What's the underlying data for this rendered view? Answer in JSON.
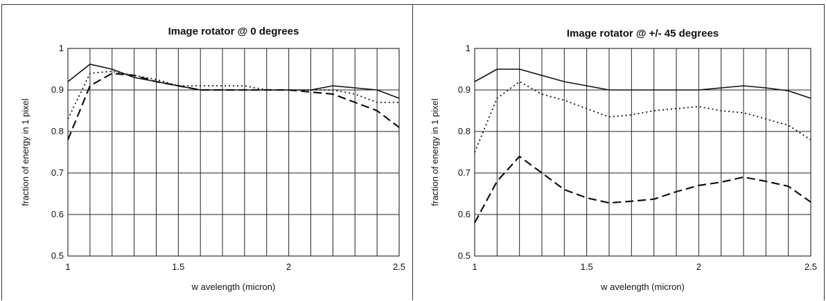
{
  "chart_data": [
    {
      "type": "line",
      "title": "Image rotator @ 0 degrees",
      "xlabel": "w avelength (micron)",
      "ylabel": "fraction of energy in 1 pixel",
      "xlim": [
        1,
        2.5
      ],
      "ylim": [
        0.5,
        1
      ],
      "xticks": [
        "1",
        "1.5",
        "2",
        "2.5"
      ],
      "yticks": [
        "0.5",
        "0.6",
        "0.7",
        "0.8",
        "0.9",
        "1"
      ],
      "grid": true,
      "legend": "none",
      "x": [
        1.0,
        1.1,
        1.2,
        1.3,
        1.4,
        1.5,
        1.6,
        1.7,
        1.8,
        1.9,
        2.0,
        2.1,
        2.2,
        2.3,
        2.4,
        2.5
      ],
      "series": [
        {
          "style": "solid",
          "values": [
            0.92,
            0.962,
            0.95,
            0.93,
            0.92,
            0.91,
            0.9,
            0.9,
            0.9,
            0.9,
            0.9,
            0.9,
            0.91,
            0.905,
            0.9,
            0.88
          ]
        },
        {
          "style": "dotted",
          "values": [
            0.83,
            0.94,
            0.945,
            0.935,
            0.925,
            0.91,
            0.91,
            0.91,
            0.91,
            0.9,
            0.9,
            0.9,
            0.9,
            0.89,
            0.87,
            0.87
          ]
        },
        {
          "style": "dashed",
          "values": [
            0.78,
            0.91,
            0.94,
            0.935,
            0.92,
            0.91,
            0.9,
            0.9,
            0.9,
            0.9,
            0.9,
            0.895,
            0.89,
            0.87,
            0.85,
            0.81
          ]
        }
      ]
    },
    {
      "type": "line",
      "title": "Image rotator @ +/- 45 degrees",
      "xlabel": "w avelength (micron)",
      "ylabel": "fraction of energy in 1 pixel",
      "xlim": [
        1,
        2.5
      ],
      "ylim": [
        0.5,
        1
      ],
      "xticks": [
        "1",
        "1.5",
        "2",
        "2.5"
      ],
      "yticks": [
        "0.5",
        "0.6",
        "0.7",
        "0.8",
        "0.9",
        "1"
      ],
      "grid": true,
      "legend": "none",
      "x": [
        1.0,
        1.1,
        1.2,
        1.3,
        1.4,
        1.5,
        1.6,
        1.7,
        1.8,
        1.9,
        2.0,
        2.1,
        2.2,
        2.3,
        2.4,
        2.5
      ],
      "series": [
        {
          "style": "solid",
          "values": [
            0.92,
            0.95,
            0.95,
            0.935,
            0.92,
            0.91,
            0.9,
            0.9,
            0.9,
            0.9,
            0.9,
            0.905,
            0.91,
            0.905,
            0.898,
            0.88
          ]
        },
        {
          "style": "dotted",
          "values": [
            0.75,
            0.88,
            0.92,
            0.89,
            0.875,
            0.855,
            0.835,
            0.84,
            0.85,
            0.855,
            0.86,
            0.85,
            0.845,
            0.83,
            0.815,
            0.78
          ]
        },
        {
          "style": "dashed",
          "values": [
            0.58,
            0.68,
            0.74,
            0.7,
            0.66,
            0.64,
            0.628,
            0.632,
            0.637,
            0.655,
            0.67,
            0.678,
            0.69,
            0.68,
            0.668,
            0.63
          ]
        }
      ]
    }
  ]
}
